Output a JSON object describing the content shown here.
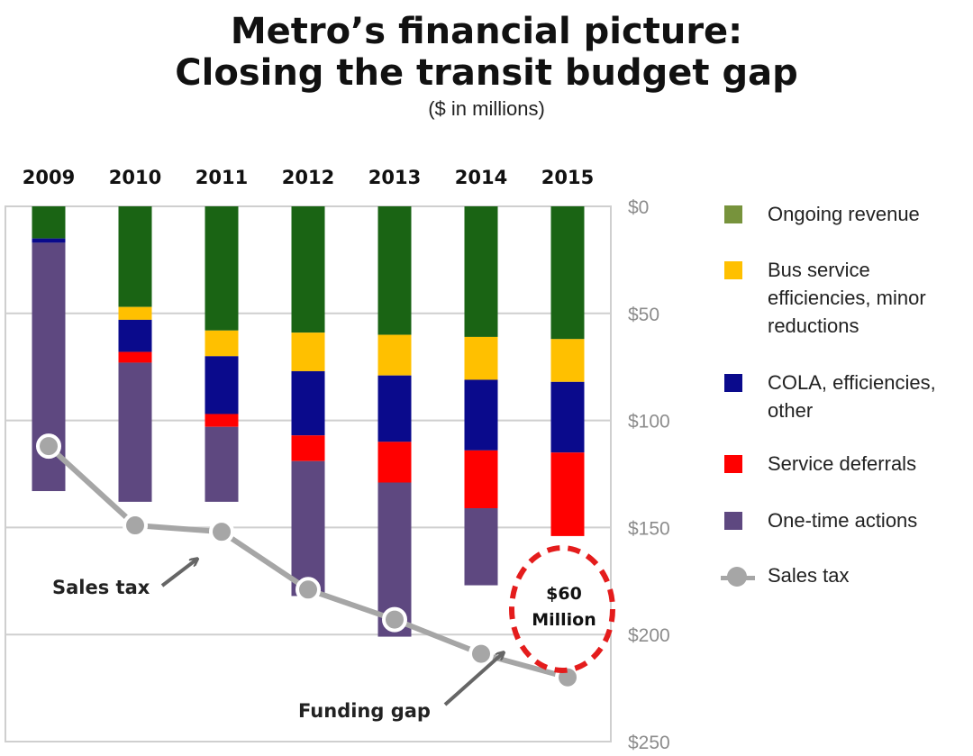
{
  "header": {
    "title_line1": "Metro’s financial picture:",
    "title_line2": "Closing the transit budget gap",
    "subtitle": "($ in millions)"
  },
  "chart_data": {
    "type": "bar",
    "stacked": true,
    "inverted_y": true,
    "categories": [
      "2009",
      "2010",
      "2011",
      "2012",
      "2013",
      "2014",
      "2015"
    ],
    "ylim": [
      0,
      250
    ],
    "y_ticks": [
      0,
      50,
      100,
      150,
      200,
      250
    ],
    "y_tick_labels": [
      "$0",
      "$50",
      "$100",
      "$150",
      "$200",
      "$250"
    ],
    "grid": true,
    "legend_position": "right",
    "series": [
      {
        "name": "Ongoing revenue",
        "color": "#1a6414",
        "values": [
          15,
          47,
          58,
          59,
          60,
          61,
          62
        ]
      },
      {
        "name": "Bus service efficiencies, minor reductions",
        "color": "#ffc000",
        "values": [
          0,
          6,
          12,
          18,
          19,
          20,
          20
        ]
      },
      {
        "name": "COLA, efficiencies, other",
        "color": "#0a0a8c",
        "values": [
          2,
          15,
          27,
          30,
          31,
          33,
          33
        ]
      },
      {
        "name": "Service deferrals",
        "color": "#ff0000",
        "values": [
          0,
          5,
          6,
          12,
          19,
          27,
          39
        ]
      },
      {
        "name": "One-time actions",
        "color": "#5e4880",
        "values": [
          116,
          65,
          35,
          63,
          72,
          36,
          0
        ]
      }
    ],
    "line_series": {
      "name": "Sales tax",
      "color": "#a6a6a6",
      "values": [
        112,
        149,
        152,
        179,
        193,
        209,
        220
      ]
    },
    "legend_colors": {
      "Ongoing revenue": "#77933c",
      "Bus service efficiencies, minor reductions": "#ffc000",
      "COLA, efficiencies, other": "#0a0a8c",
      "Service deferrals": "#ff0000",
      "One-time actions": "#5e4880",
      "Sales tax": "#a6a6a6"
    },
    "annotations": {
      "sales_tax": "Sales tax",
      "funding_gap": "Funding gap",
      "gap_amount": "$60",
      "gap_unit": "Million"
    }
  }
}
